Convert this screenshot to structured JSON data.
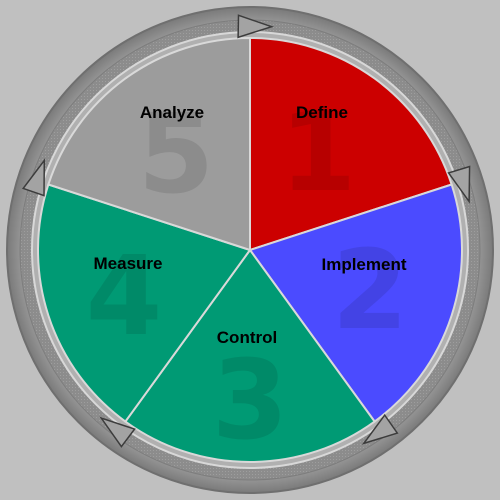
{
  "background": "#c0c0c0",
  "ring": {
    "outer_color": "#a7a7a7",
    "track_color": "#8f8f8f",
    "arrow_color": "#9a9a9a"
  },
  "segments": [
    {
      "number": "1",
      "label": "Define",
      "color": "#cc0000"
    },
    {
      "number": "2",
      "label": "Implement",
      "color": "#4b4bff"
    },
    {
      "number": "3",
      "label": "Control",
      "color": "#009a74"
    },
    {
      "number": "4",
      "label": "Measure",
      "color": "#009a74"
    },
    {
      "number": "5",
      "label": "Analyze",
      "color": "#9c9c9c"
    }
  ]
}
